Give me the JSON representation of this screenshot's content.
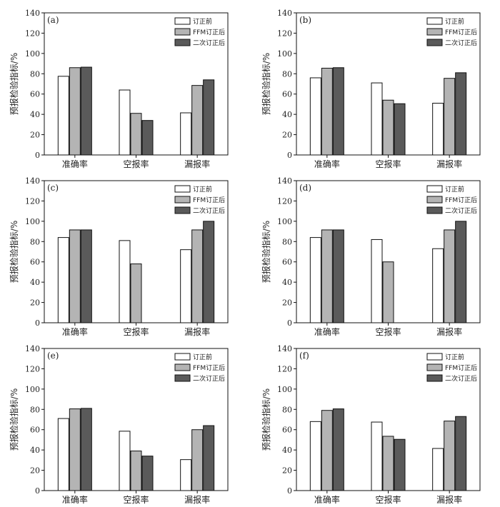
{
  "chart_data": [
    {
      "type": "bar",
      "panel_label": "(a)",
      "categories": [
        "准确率",
        "空报率",
        "漏报率"
      ],
      "series": [
        {
          "name": "订正前",
          "values": [
            77.5,
            64,
            41.5
          ]
        },
        {
          "name": "FFM订正后",
          "values": [
            86,
            41,
            68.5
          ]
        },
        {
          "name": "二次订正后",
          "values": [
            86.5,
            34,
            74
          ]
        }
      ],
      "ylabel": "预报检验指标/%",
      "ylim": [
        0,
        140
      ],
      "yticks": [
        0,
        20,
        40,
        60,
        80,
        100,
        120,
        140
      ],
      "legend_position": "top-right",
      "grid": false
    },
    {
      "type": "bar",
      "panel_label": "(b)",
      "categories": [
        "准确率",
        "空报率",
        "漏报率"
      ],
      "series": [
        {
          "name": "订正前",
          "values": [
            76,
            71,
            51
          ]
        },
        {
          "name": "FFM订正后",
          "values": [
            85.5,
            54,
            75.5
          ]
        },
        {
          "name": "二次订正后",
          "values": [
            86,
            50.5,
            81
          ]
        }
      ],
      "ylabel": "预报检验指标/%",
      "ylim": [
        0,
        140
      ],
      "yticks": [
        0,
        20,
        40,
        60,
        80,
        100,
        120,
        140
      ],
      "legend_position": "top-right",
      "grid": false
    },
    {
      "type": "bar",
      "panel_label": "(c)",
      "categories": [
        "准确率",
        "空报率",
        "漏报率"
      ],
      "series": [
        {
          "name": "订正前",
          "values": [
            84,
            81,
            72
          ]
        },
        {
          "name": "FFM订正后",
          "values": [
            91.5,
            58,
            91.5
          ]
        },
        {
          "name": "二次订正后",
          "values": [
            91.5,
            0,
            100
          ]
        }
      ],
      "ylabel": "预报检验指标/%",
      "ylim": [
        0,
        140
      ],
      "yticks": [
        0,
        20,
        40,
        60,
        80,
        100,
        120,
        140
      ],
      "legend_position": "top-right",
      "grid": false
    },
    {
      "type": "bar",
      "panel_label": "(d)",
      "categories": [
        "准确率",
        "空报率",
        "漏报率"
      ],
      "series": [
        {
          "name": "订正前",
          "values": [
            84,
            82,
            73
          ]
        },
        {
          "name": "FFM订正后",
          "values": [
            91.5,
            60,
            91.5
          ]
        },
        {
          "name": "二次订正后",
          "values": [
            91.5,
            0,
            100
          ]
        }
      ],
      "ylabel": "预报检验指标/%",
      "ylim": [
        0,
        140
      ],
      "yticks": [
        0,
        20,
        40,
        60,
        80,
        100,
        120,
        140
      ],
      "legend_position": "top-right",
      "grid": false
    },
    {
      "type": "bar",
      "panel_label": "(e)",
      "categories": [
        "准确率",
        "空报率",
        "漏报率"
      ],
      "series": [
        {
          "name": "订正前",
          "values": [
            71,
            58.5,
            30.5
          ]
        },
        {
          "name": "FFM订正后",
          "values": [
            80.5,
            39,
            60
          ]
        },
        {
          "name": "二次订正后",
          "values": [
            81,
            34,
            64
          ]
        }
      ],
      "ylabel": "预报检验指标/%",
      "ylim": [
        0,
        140
      ],
      "yticks": [
        0,
        20,
        40,
        60,
        80,
        100,
        120,
        140
      ],
      "legend_position": "top-right",
      "grid": false
    },
    {
      "type": "bar",
      "panel_label": "(f)",
      "categories": [
        "准确率",
        "空报率",
        "漏报率"
      ],
      "series": [
        {
          "name": "订正前",
          "values": [
            68,
            67.5,
            41.5
          ]
        },
        {
          "name": "FFM订正后",
          "values": [
            79,
            53.5,
            68.5
          ]
        },
        {
          "name": "二次订正后",
          "values": [
            80.5,
            50.5,
            73
          ]
        }
      ],
      "ylabel": "预报检验指标/%",
      "ylim": [
        0,
        140
      ],
      "yticks": [
        0,
        20,
        40,
        60,
        80,
        100,
        120,
        140
      ],
      "legend_position": "top-right",
      "grid": false
    }
  ],
  "colors": {
    "series": [
      "#ffffff",
      "#b4b4b4",
      "#5a5a5a"
    ],
    "stroke": "#111111",
    "axis": "#111111",
    "text": "#222222"
  }
}
